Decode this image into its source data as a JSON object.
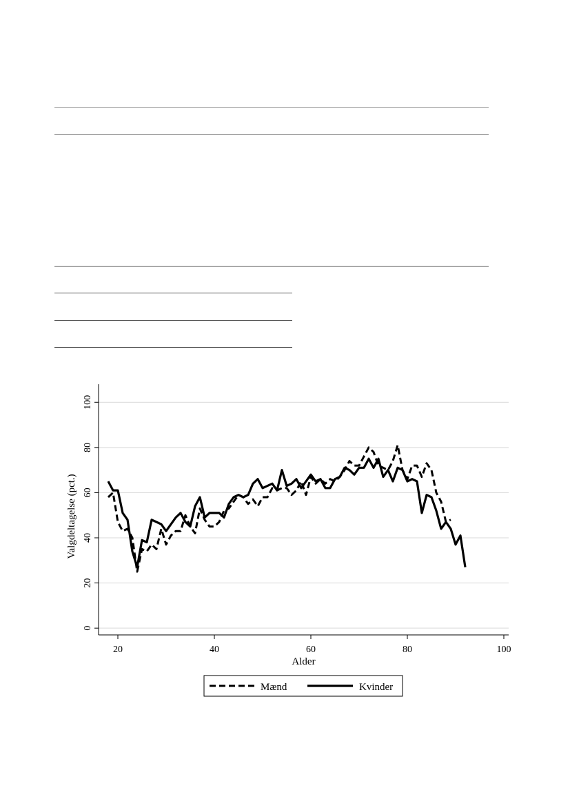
{
  "page": {
    "background": "#ffffff"
  },
  "chart_data": {
    "type": "line",
    "title": "",
    "xlabel": "Alder",
    "ylabel": "Valgdeltagelse (pct.)",
    "xlim": [
      16,
      101
    ],
    "ylim": [
      -3,
      108
    ],
    "xticks": [
      20,
      40,
      60,
      80,
      100
    ],
    "yticks": [
      0,
      20,
      40,
      60,
      80,
      100
    ],
    "grid": "horizontal",
    "legend": "bottom-center",
    "series": [
      {
        "name": "Mænd",
        "style": "dashed",
        "color": "#000000",
        "x": [
          18,
          19,
          20,
          21,
          22,
          23,
          24,
          25,
          26,
          27,
          28,
          29,
          30,
          31,
          32,
          33,
          34,
          35,
          36,
          37,
          38,
          39,
          40,
          41,
          42,
          43,
          44,
          45,
          46,
          47,
          48,
          49,
          50,
          51,
          52,
          53,
          54,
          55,
          56,
          57,
          58,
          59,
          60,
          61,
          62,
          63,
          64,
          65,
          66,
          67,
          68,
          69,
          70,
          71,
          72,
          73,
          74,
          75,
          76,
          77,
          78,
          79,
          80,
          81,
          82,
          83,
          84,
          85,
          86,
          87,
          88,
          89
        ],
        "y": [
          58,
          60,
          47,
          43,
          44,
          40,
          25,
          35,
          34,
          37,
          35,
          44,
          37,
          41,
          43,
          43,
          50,
          45,
          42,
          53,
          48,
          45,
          45,
          47,
          52,
          53,
          56,
          59,
          58,
          55,
          57,
          54,
          58,
          58,
          62,
          61,
          62,
          62,
          59,
          61,
          65,
          59,
          67,
          64,
          66,
          64,
          66,
          65,
          67,
          70,
          74,
          72,
          72,
          76,
          80,
          78,
          72,
          71,
          70,
          74,
          81,
          70,
          66,
          72,
          72,
          67,
          73,
          70,
          60,
          56,
          47,
          48
        ]
      },
      {
        "name": "Kvinder",
        "style": "solid",
        "color": "#000000",
        "x": [
          18,
          19,
          20,
          21,
          22,
          23,
          24,
          25,
          26,
          27,
          28,
          29,
          30,
          31,
          32,
          33,
          34,
          35,
          36,
          37,
          38,
          39,
          40,
          41,
          42,
          43,
          44,
          45,
          46,
          47,
          48,
          49,
          50,
          51,
          52,
          53,
          54,
          55,
          56,
          57,
          58,
          59,
          60,
          61,
          62,
          63,
          64,
          65,
          66,
          67,
          68,
          69,
          70,
          71,
          72,
          73,
          74,
          75,
          76,
          77,
          78,
          79,
          80,
          81,
          82,
          83,
          84,
          85,
          86,
          87,
          88,
          89,
          90,
          91,
          92
        ],
        "y": [
          65,
          61,
          61,
          51,
          48,
          34,
          27,
          39,
          38,
          48,
          47,
          46,
          43,
          46,
          49,
          51,
          47,
          45,
          54,
          58,
          49,
          51,
          51,
          51,
          49,
          55,
          58,
          59,
          58,
          59,
          64,
          66,
          62,
          63,
          64,
          61,
          70,
          63,
          64,
          66,
          62,
          65,
          68,
          65,
          66,
          62,
          62,
          66,
          67,
          71,
          70,
          68,
          71,
          71,
          75,
          71,
          75,
          67,
          70,
          65,
          71,
          70,
          65,
          66,
          65,
          51,
          59,
          58,
          52,
          44,
          47,
          44,
          37,
          41,
          27
        ]
      }
    ]
  }
}
